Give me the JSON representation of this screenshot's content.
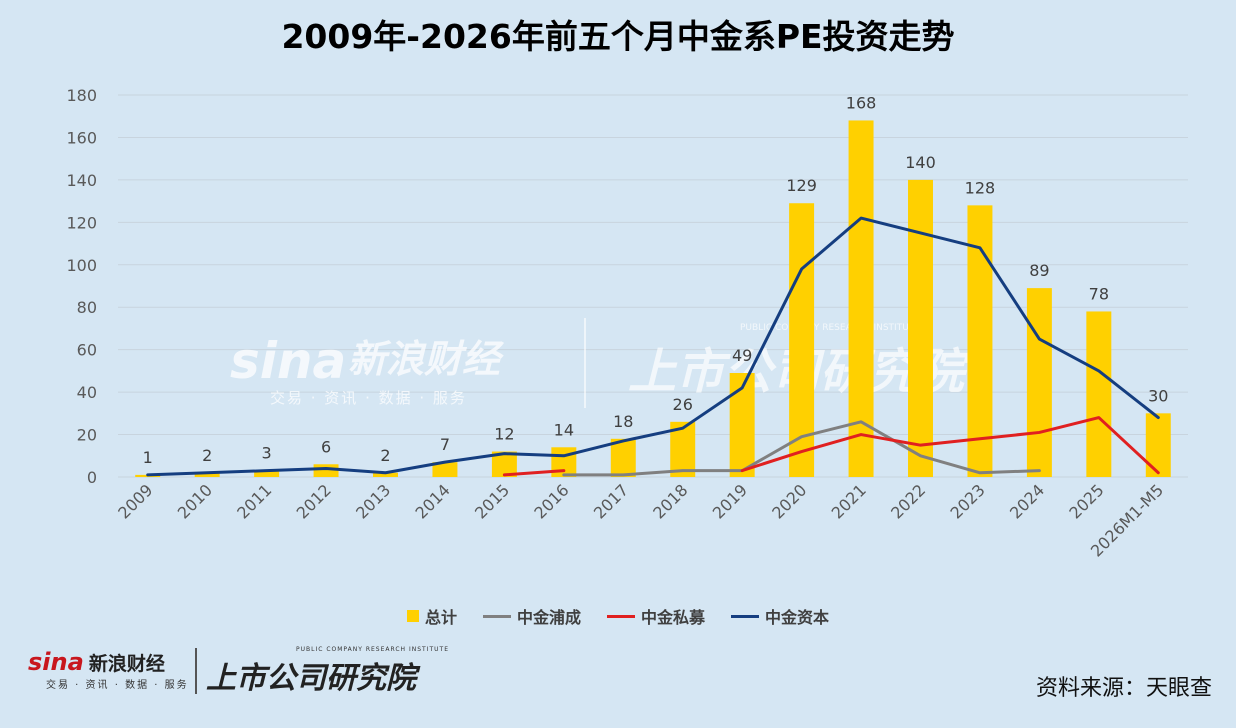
{
  "title": "2009年-2026年前五个月中金系PE投资走势",
  "source": "资料来源：天眼查",
  "watermark": {
    "sina": "sina",
    "sina_cn": "新浪财经",
    "sina_sub": "交易 · 资讯 · 数据 · 服务",
    "research": "上市公司研究院",
    "research_en": "PUBLIC COMPANY RESEARCH INSTITUTE"
  },
  "colors": {
    "bar": "#ffd000",
    "pucheng": "#808080",
    "simu": "#e02020",
    "ziben": "#153e80",
    "grid": "#c8d4de",
    "axis_text": "#595959"
  },
  "chart_data": {
    "type": "bar",
    "categories": [
      "2009",
      "2010",
      "2011",
      "2012",
      "2013",
      "2014",
      "2015",
      "2016",
      "2017",
      "2018",
      "2019",
      "2020",
      "2021",
      "2022",
      "2023",
      "2024",
      "2025",
      "2026M1-M5"
    ],
    "ylim": [
      0,
      180
    ],
    "yticks": [
      0,
      20,
      40,
      60,
      80,
      100,
      120,
      140,
      160,
      180
    ],
    "grid": true,
    "legend_position": "bottom",
    "series": [
      {
        "name": "总计",
        "type": "bar",
        "values": [
          1,
          2,
          3,
          6,
          2,
          7,
          12,
          14,
          18,
          26,
          49,
          129,
          168,
          140,
          128,
          89,
          78,
          30
        ]
      },
      {
        "name": "中金浦成",
        "type": "line",
        "values": [
          null,
          null,
          null,
          null,
          null,
          null,
          null,
          1,
          1,
          3,
          3,
          19,
          26,
          10,
          2,
          3,
          null,
          null
        ]
      },
      {
        "name": "中金私募",
        "type": "line",
        "values": [
          null,
          null,
          null,
          null,
          null,
          null,
          1,
          3,
          null,
          null,
          3,
          12,
          20,
          15,
          18,
          21,
          28,
          2
        ]
      },
      {
        "name": "中金资本",
        "type": "line",
        "values": [
          1,
          2,
          3,
          4,
          2,
          7,
          11,
          10,
          17,
          23,
          42,
          98,
          122,
          115,
          108,
          65,
          50,
          28
        ]
      }
    ]
  }
}
